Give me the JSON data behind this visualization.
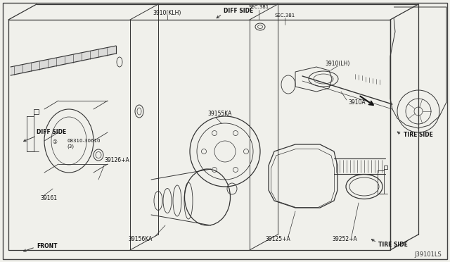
{
  "bg_color": "#f0f0eb",
  "border_color": "#444444",
  "line_color": "#333333",
  "title_bottom_right": "J39101LS",
  "figsize": [
    6.4,
    3.72
  ],
  "dpi": 100,
  "labels": {
    "diff_side_left": "DIFF SIDE",
    "bolt_label": "① 08310-30610",
    "bolt_label2": "(3)",
    "part_39126": "39126+A",
    "part_39161": "39161",
    "part_39156KA": "39156KA",
    "part_39155KA": "39155KA",
    "part_39125": "39125+A",
    "part_39252": "39252+A",
    "tire_side_bottom": "TIRE SIDE",
    "front_label": "FRONT",
    "diff_side_top": "DIFF SIDE",
    "sec381_1": "SEC.381",
    "sec381_2": "SEC.381",
    "part_3910KLH_top": "3910(KLH)",
    "part_3910KLH_right": "3910(LH)",
    "part_3910A": "3910A",
    "tire_side_right": "TIRE SIDE"
  }
}
